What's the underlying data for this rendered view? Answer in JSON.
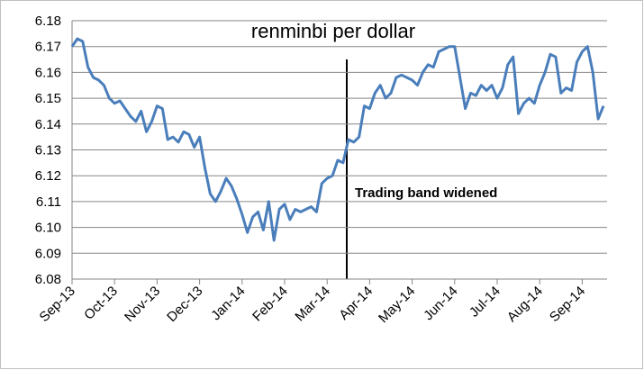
{
  "chart_data": {
    "type": "line",
    "title": "renminbi per dollar",
    "annotation": "Trading band widened",
    "color": "#4a7ebb",
    "categories": [
      "Sep-13",
      null,
      null,
      null,
      null,
      null,
      null,
      null,
      "Oct-13",
      null,
      null,
      null,
      null,
      null,
      null,
      null,
      "Nov-13",
      null,
      null,
      null,
      null,
      null,
      null,
      null,
      "Dec-13",
      null,
      null,
      null,
      null,
      null,
      null,
      null,
      "Jan-14",
      null,
      null,
      null,
      null,
      null,
      null,
      null,
      "Feb-14",
      null,
      null,
      null,
      null,
      null,
      null,
      null,
      "Mar-14",
      null,
      null,
      null,
      null,
      null,
      null,
      null,
      "Apr-14",
      null,
      null,
      null,
      null,
      null,
      null,
      null,
      "May-14",
      null,
      null,
      null,
      null,
      null,
      null,
      null,
      "Jun-14",
      null,
      null,
      null,
      null,
      null,
      null,
      null,
      "Jul-14",
      null,
      null,
      null,
      null,
      null,
      null,
      null,
      "Aug-14",
      null,
      null,
      null,
      null,
      null,
      null,
      null,
      "Sep-14",
      null,
      null,
      null,
      null
    ],
    "values": [
      6.17,
      6.173,
      6.172,
      6.162,
      6.158,
      6.157,
      6.155,
      6.15,
      6.148,
      6.149,
      6.146,
      6.143,
      6.141,
      6.145,
      6.137,
      6.141,
      6.147,
      6.146,
      6.134,
      6.135,
      6.133,
      6.137,
      6.136,
      6.131,
      6.135,
      6.123,
      6.113,
      6.11,
      6.114,
      6.119,
      6.116,
      6.111,
      6.105,
      6.098,
      6.104,
      6.106,
      6.099,
      6.11,
      6.095,
      6.107,
      6.109,
      6.103,
      6.107,
      6.106,
      6.107,
      6.108,
      6.106,
      6.117,
      6.119,
      6.12,
      6.126,
      6.125,
      6.134,
      6.133,
      6.135,
      6.147,
      6.146,
      6.152,
      6.155,
      6.15,
      6.152,
      6.158,
      6.159,
      6.158,
      6.157,
      6.155,
      6.16,
      6.163,
      6.162,
      6.168,
      6.169,
      6.17,
      6.17,
      6.158,
      6.146,
      6.152,
      6.151,
      6.155,
      6.153,
      6.155,
      6.15,
      6.154,
      6.163,
      6.166,
      6.144,
      6.148,
      6.15,
      6.148,
      6.155,
      6.16,
      6.167,
      6.166,
      6.152,
      6.154,
      6.153,
      6.164,
      6.168,
      6.17,
      6.16,
      6.142,
      6.147
    ],
    "ylim": [
      6.08,
      6.18
    ],
    "yticks": [
      6.08,
      6.09,
      {
        "value": 6.1,
        "label": "6.10"
      },
      6.11,
      6.12,
      6.13,
      6.14,
      6.15,
      6.16,
      6.17,
      6.18
    ],
    "grid": true
  }
}
